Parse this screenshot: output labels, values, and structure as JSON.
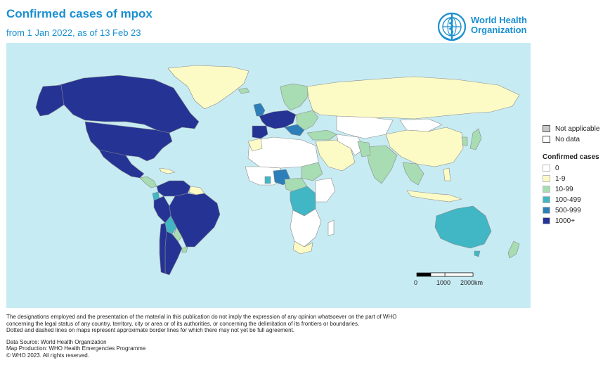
{
  "header": {
    "title": "Confirmed cases of mpox",
    "subtitle": "from 1 Jan 2022, as of 13 Feb 23"
  },
  "logo": {
    "line1": "World Health",
    "line2": "Organization",
    "icon": "who-emblem-icon",
    "color": "#1a8fd0"
  },
  "legend": {
    "na_label": "Not applicable",
    "nodata_label": "No data",
    "title": "Confirmed cases",
    "classes": [
      {
        "label": "0",
        "color": "#ffffff"
      },
      {
        "label": "1-9",
        "color": "#fdfbc5"
      },
      {
        "label": "10-99",
        "color": "#a8dcb3"
      },
      {
        "label": "100-499",
        "color": "#41b6c4"
      },
      {
        "label": "500-999",
        "color": "#2c7fb8"
      },
      {
        "label": "1000+",
        "color": "#253494"
      }
    ]
  },
  "map": {
    "ocean_color": "#c7ebf3",
    "scale": {
      "t0": "0",
      "t1": "1000",
      "t2": "2000km"
    }
  },
  "footer": {
    "disclaimer1": "The designations employed and the presentation of the material in this publication do not imply the expression of any opinion whatsoever on the part of WHO",
    "disclaimer2": "concerning the legal status of any country, territory, city or area or of its authorities, or concerning the delimitation of its frontiers or boundaries.",
    "disclaimer3": "Dotted and dashed lines on maps represent approximate border lines for which there may not yet be full agreement.",
    "source": "Data Source: World Health Organization",
    "production": "Map Production: WHO Health Emergencies Programme",
    "copyright": "© WHO 2023. All rights reserved."
  }
}
